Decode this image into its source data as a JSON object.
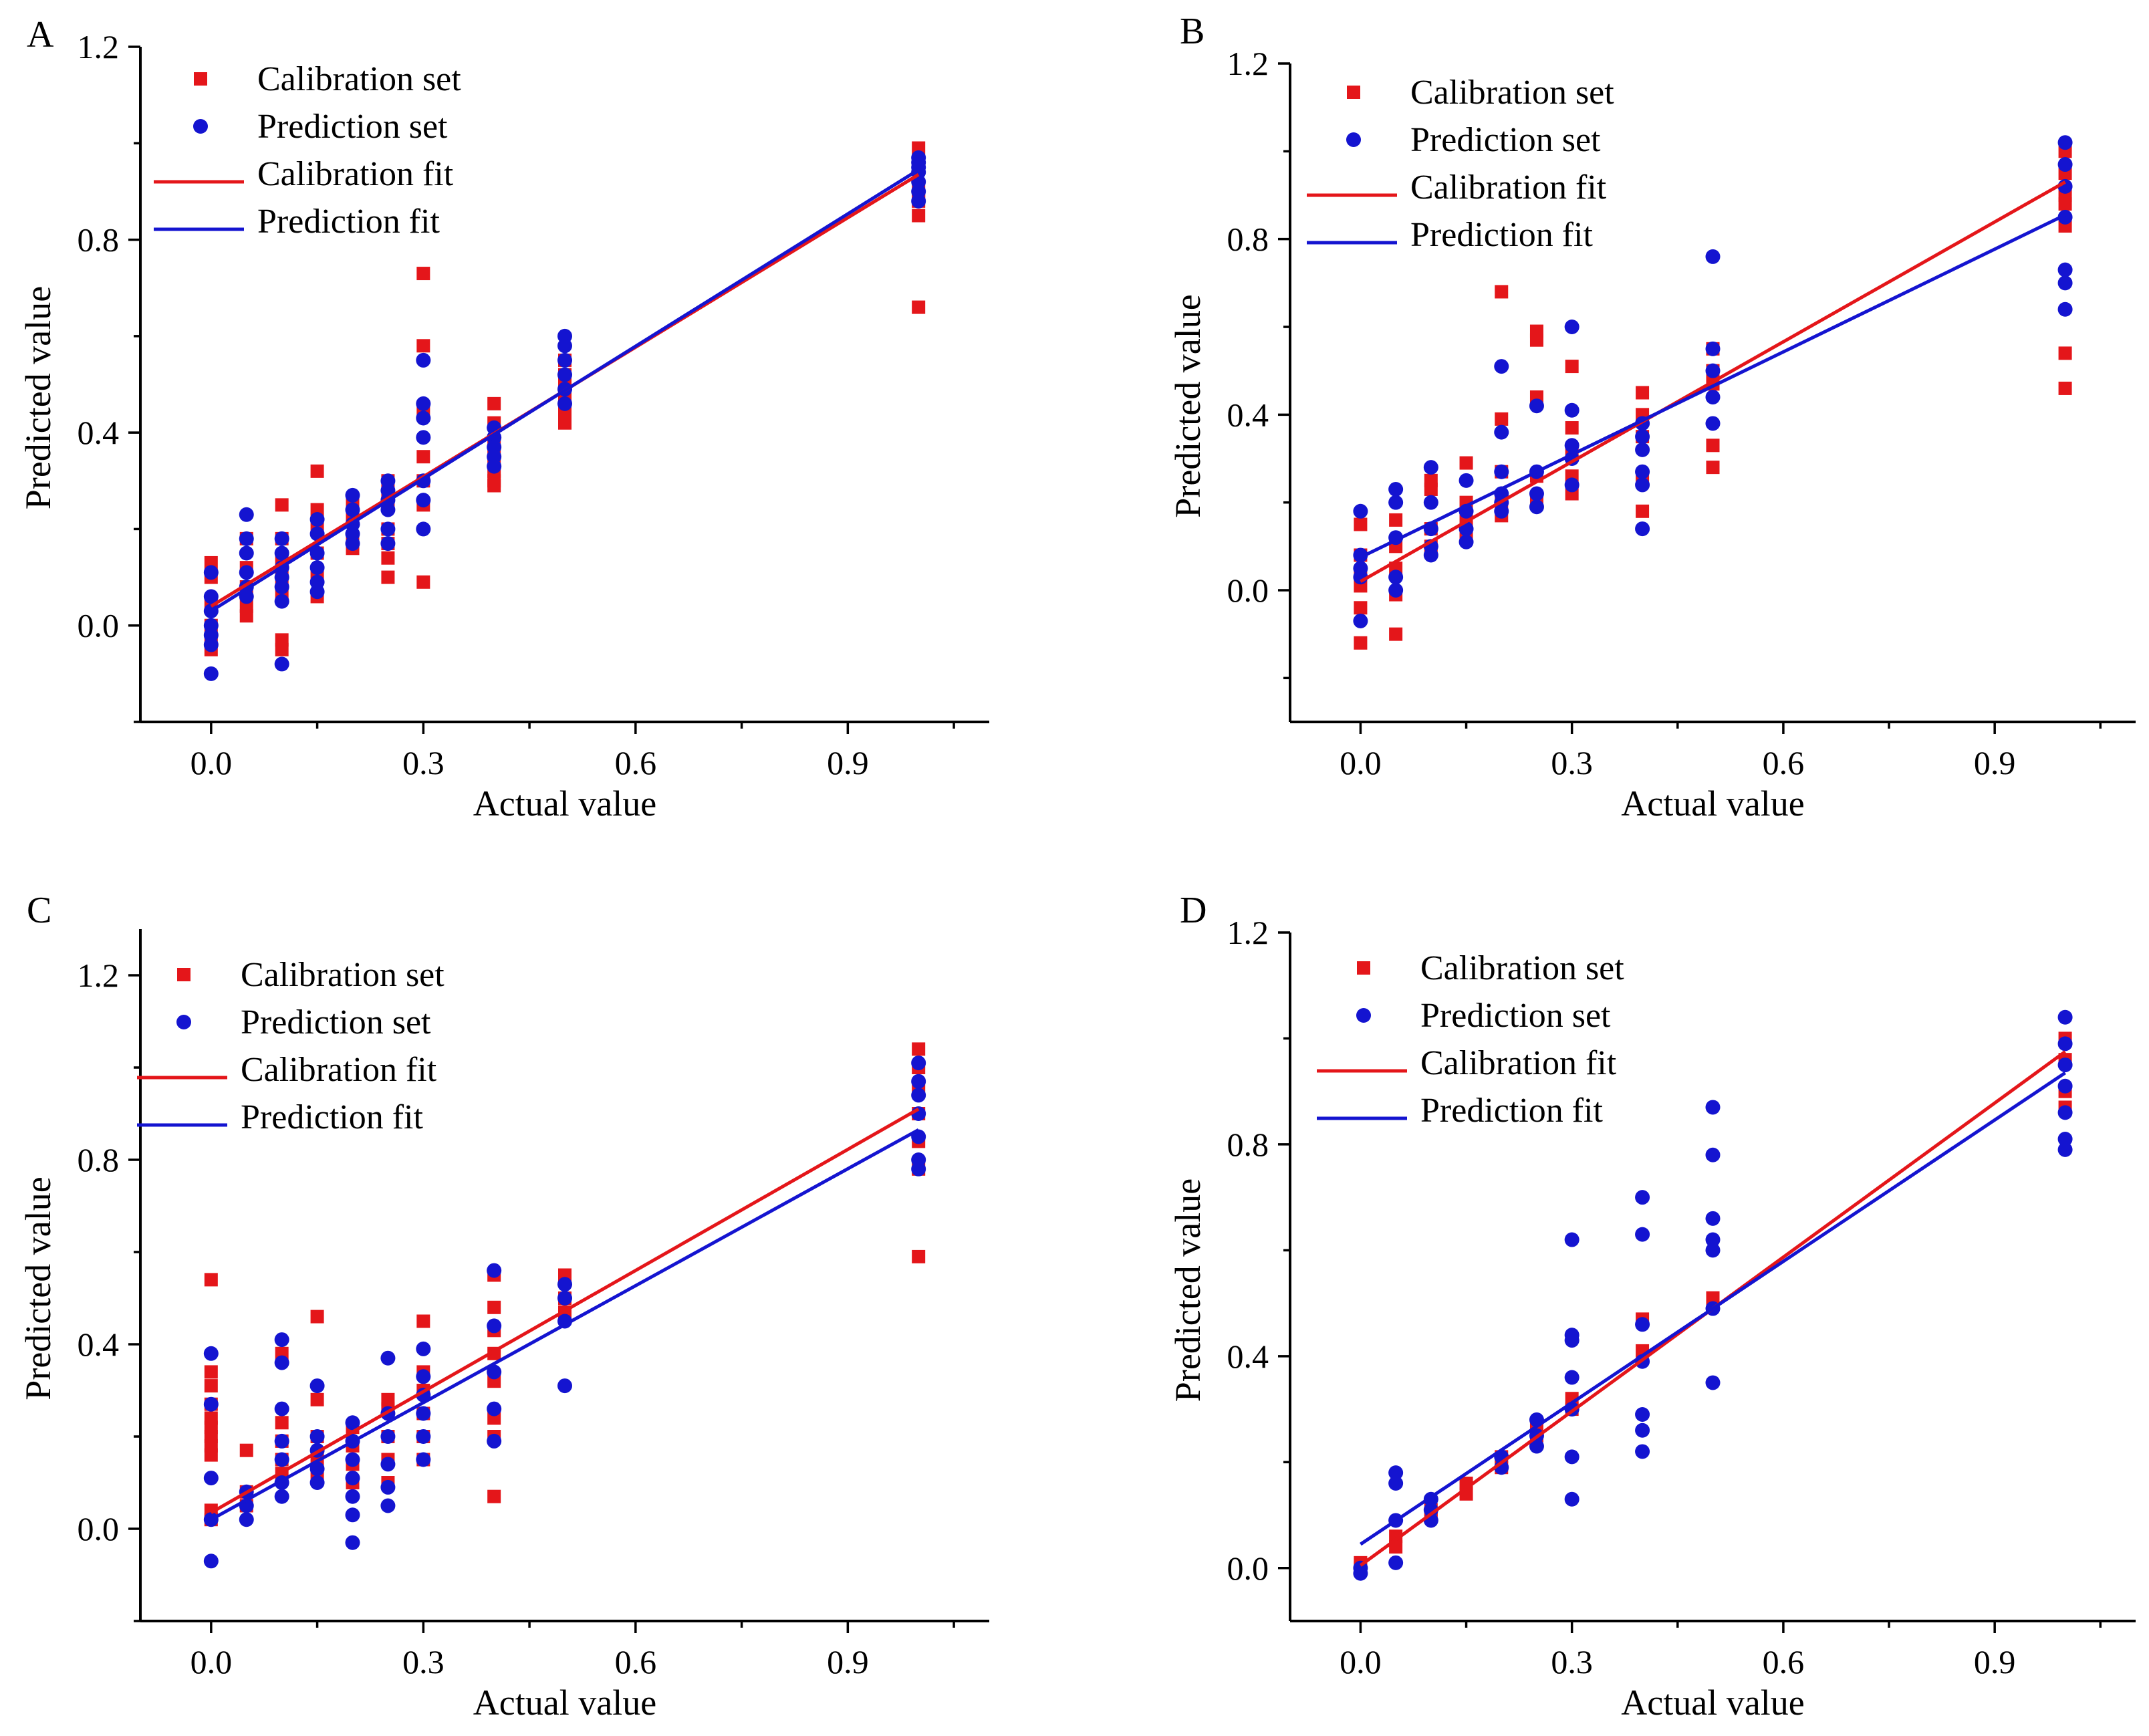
{
  "figure": {
    "colors": {
      "calibration": "#e4161a",
      "prediction": "#1414d0",
      "axis": "#000000"
    },
    "legend": [
      "Calibration set",
      "Prediction set",
      "Calibration fit",
      "Prediction fit"
    ]
  },
  "chart_data": [
    {
      "type": "scatter",
      "panel": "A",
      "xlabel": "Actual value",
      "ylabel": "Predicted value",
      "xticks": [
        "0.0",
        "0.3",
        "0.6",
        "0.9"
      ],
      "yticks": [
        "0.0",
        "0.4",
        "0.8",
        "1.2"
      ],
      "xlim": [
        -0.1,
        1.1
      ],
      "ylim": [
        -0.2,
        1.2
      ],
      "legend": [
        "Calibration set",
        "Prediction set",
        "Calibration fit",
        "Prediction fit"
      ],
      "series": [
        {
          "name": "Calibration set",
          "kind": "points",
          "marker": "square",
          "x": [
            0,
            0,
            0,
            0,
            0,
            0,
            0.05,
            0.05,
            0.05,
            0.05,
            0.05,
            0.1,
            0.1,
            0.1,
            0.1,
            0.1,
            0.1,
            0.1,
            0.15,
            0.15,
            0.15,
            0.15,
            0.15,
            0.15,
            0.2,
            0.2,
            0.2,
            0.2,
            0.25,
            0.25,
            0.25,
            0.25,
            0.25,
            0.25,
            0.3,
            0.3,
            0.3,
            0.3,
            0.3,
            0.3,
            0.3,
            0.4,
            0.4,
            0.4,
            0.4,
            0.4,
            0.4,
            0.4,
            0.5,
            0.5,
            0.5,
            0.5,
            0.5,
            0.5,
            1,
            1,
            1,
            1,
            1,
            1
          ],
          "y": [
            0.13,
            0.1,
            0.05,
            0.0,
            -0.03,
            -0.05,
            0.18,
            0.12,
            0.08,
            0.04,
            0.02,
            0.25,
            0.18,
            0.14,
            0.1,
            0.06,
            -0.03,
            -0.05,
            0.32,
            0.24,
            0.2,
            0.15,
            0.1,
            0.06,
            0.25,
            0.22,
            0.18,
            0.16,
            0.3,
            0.26,
            0.2,
            0.17,
            0.14,
            0.1,
            0.73,
            0.58,
            0.44,
            0.35,
            0.3,
            0.25,
            0.09,
            0.46,
            0.42,
            0.38,
            0.35,
            0.32,
            0.3,
            0.29,
            0.55,
            0.52,
            0.5,
            0.47,
            0.44,
            0.42,
            0.99,
            0.95,
            0.9,
            0.88,
            0.85,
            0.66
          ]
        },
        {
          "name": "Prediction set",
          "kind": "points",
          "marker": "circle",
          "x": [
            0,
            0,
            0,
            0,
            0,
            0,
            0,
            0.05,
            0.05,
            0.05,
            0.05,
            0.05,
            0.05,
            0.1,
            0.1,
            0.1,
            0.1,
            0.1,
            0.1,
            0.1,
            0.15,
            0.15,
            0.15,
            0.15,
            0.15,
            0.15,
            0.2,
            0.2,
            0.2,
            0.2,
            0.2,
            0.25,
            0.25,
            0.25,
            0.25,
            0.25,
            0.25,
            0.3,
            0.3,
            0.3,
            0.3,
            0.3,
            0.3,
            0.3,
            0.4,
            0.4,
            0.4,
            0.4,
            0.4,
            0.5,
            0.5,
            0.5,
            0.5,
            0.5,
            0.5,
            1,
            1,
            1,
            1,
            1,
            1,
            1
          ],
          "y": [
            0.11,
            0.06,
            0.03,
            0.0,
            -0.02,
            -0.04,
            -0.1,
            0.23,
            0.18,
            0.15,
            0.11,
            0.08,
            0.06,
            0.18,
            0.15,
            0.12,
            0.1,
            0.08,
            0.05,
            -0.08,
            0.22,
            0.19,
            0.15,
            0.12,
            0.09,
            0.07,
            0.27,
            0.24,
            0.21,
            0.19,
            0.17,
            0.3,
            0.28,
            0.26,
            0.24,
            0.2,
            0.17,
            0.55,
            0.46,
            0.43,
            0.39,
            0.3,
            0.26,
            0.2,
            0.41,
            0.39,
            0.37,
            0.35,
            0.33,
            0.6,
            0.58,
            0.55,
            0.52,
            0.49,
            0.46,
            0.97,
            0.96,
            0.95,
            0.94,
            0.92,
            0.9,
            0.88
          ]
        },
        {
          "name": "Calibration fit",
          "kind": "line",
          "x": [
            0,
            1
          ],
          "y": [
            0.04,
            0.935
          ]
        },
        {
          "name": "Prediction fit",
          "kind": "line",
          "x": [
            0,
            1
          ],
          "y": [
            0.03,
            0.945
          ]
        }
      ]
    },
    {
      "type": "scatter",
      "panel": "B",
      "xlabel": "Actual value",
      "ylabel": "Predicted value",
      "xticks": [
        "0.0",
        "0.3",
        "0.6",
        "0.9"
      ],
      "yticks": [
        "0.0",
        "0.4",
        "0.8",
        "1.2"
      ],
      "xlim": [
        -0.1,
        1.1
      ],
      "ylim": [
        -0.3,
        1.2
      ],
      "legend": [
        "Calibration set",
        "Prediction set",
        "Calibration fit",
        "Prediction fit"
      ],
      "series": [
        {
          "name": "Calibration set",
          "kind": "points",
          "marker": "square",
          "x": [
            0,
            0,
            0,
            0,
            0,
            0,
            0.05,
            0.05,
            0.05,
            0.05,
            0.05,
            0.1,
            0.1,
            0.1,
            0.1,
            0.15,
            0.15,
            0.15,
            0.15,
            0.2,
            0.2,
            0.2,
            0.2,
            0.2,
            0.25,
            0.25,
            0.25,
            0.25,
            0.25,
            0.3,
            0.3,
            0.3,
            0.3,
            0.3,
            0.4,
            0.4,
            0.4,
            0.4,
            0.4,
            0.5,
            0.5,
            0.5,
            0.5,
            0.5,
            1,
            1,
            1,
            1,
            1,
            1,
            1
          ],
          "y": [
            0.15,
            0.08,
            0.04,
            0.01,
            -0.04,
            -0.12,
            0.16,
            0.1,
            0.05,
            -0.01,
            -0.1,
            0.25,
            0.23,
            0.14,
            0.1,
            0.29,
            0.2,
            0.16,
            0.12,
            0.68,
            0.39,
            0.27,
            0.2,
            0.17,
            0.59,
            0.57,
            0.44,
            0.26,
            0.2,
            0.51,
            0.37,
            0.32,
            0.26,
            0.22,
            0.45,
            0.4,
            0.35,
            0.25,
            0.18,
            0.55,
            0.5,
            0.47,
            0.33,
            0.28,
            1.0,
            0.95,
            0.9,
            0.88,
            0.83,
            0.54,
            0.46
          ]
        },
        {
          "name": "Prediction set",
          "kind": "points",
          "marker": "circle",
          "x": [
            0,
            0,
            0,
            0,
            0,
            0.05,
            0.05,
            0.05,
            0.05,
            0.05,
            0.1,
            0.1,
            0.1,
            0.1,
            0.1,
            0.15,
            0.15,
            0.15,
            0.15,
            0.2,
            0.2,
            0.2,
            0.2,
            0.2,
            0.2,
            0.25,
            0.25,
            0.25,
            0.25,
            0.3,
            0.3,
            0.3,
            0.3,
            0.3,
            0.4,
            0.4,
            0.4,
            0.4,
            0.4,
            0.4,
            0.5,
            0.5,
            0.5,
            0.5,
            0.5,
            1,
            1,
            1,
            1,
            1,
            1,
            1
          ],
          "y": [
            0.18,
            0.08,
            0.05,
            0.03,
            -0.07,
            0.23,
            0.2,
            0.12,
            0.03,
            0.0,
            0.28,
            0.2,
            0.14,
            0.1,
            0.08,
            0.25,
            0.18,
            0.14,
            0.11,
            0.51,
            0.36,
            0.27,
            0.22,
            0.2,
            0.18,
            0.42,
            0.27,
            0.22,
            0.19,
            0.6,
            0.41,
            0.33,
            0.3,
            0.24,
            0.38,
            0.35,
            0.32,
            0.27,
            0.24,
            0.14,
            0.76,
            0.55,
            0.5,
            0.44,
            0.38,
            1.02,
            0.97,
            0.92,
            0.85,
            0.73,
            0.7,
            0.64
          ]
        },
        {
          "name": "Calibration fit",
          "kind": "line",
          "x": [
            0,
            1
          ],
          "y": [
            0.02,
            0.93
          ]
        },
        {
          "name": "Prediction fit",
          "kind": "line",
          "x": [
            0,
            1
          ],
          "y": [
            0.075,
            0.855
          ]
        }
      ]
    },
    {
      "type": "scatter",
      "panel": "C",
      "xlabel": "Actual value",
      "ylabel": "Predicted value",
      "xticks": [
        "0.0",
        "0.3",
        "0.6",
        "0.9"
      ],
      "yticks": [
        "0.0",
        "0.4",
        "0.8",
        "1.2"
      ],
      "xlim": [
        -0.1,
        1.1
      ],
      "ylim": [
        -0.2,
        1.3
      ],
      "legend": [
        "Calibration set",
        "Prediction set",
        "Calibration fit",
        "Prediction fit"
      ],
      "series": [
        {
          "name": "Calibration set",
          "kind": "points",
          "marker": "square",
          "x": [
            0,
            0,
            0,
            0,
            0,
            0,
            0,
            0,
            0,
            0,
            0,
            0.05,
            0.05,
            0.05,
            0.1,
            0.1,
            0.1,
            0.1,
            0.1,
            0.15,
            0.15,
            0.15,
            0.15,
            0.15,
            0.2,
            0.2,
            0.2,
            0.2,
            0.25,
            0.25,
            0.25,
            0.25,
            0.25,
            0.3,
            0.3,
            0.3,
            0.3,
            0.3,
            0.3,
            0.4,
            0.4,
            0.4,
            0.4,
            0.4,
            0.4,
            0.4,
            0.4,
            0.5,
            0.5,
            0.5,
            1,
            1,
            1,
            1,
            1,
            1,
            1
          ],
          "y": [
            0.54,
            0.34,
            0.31,
            0.27,
            0.24,
            0.22,
            0.2,
            0.18,
            0.16,
            0.04,
            0.02,
            0.17,
            0.08,
            0.05,
            0.38,
            0.23,
            0.19,
            0.15,
            0.12,
            0.46,
            0.28,
            0.2,
            0.15,
            0.12,
            0.22,
            0.18,
            0.14,
            0.1,
            0.28,
            0.26,
            0.2,
            0.15,
            0.1,
            0.45,
            0.34,
            0.3,
            0.25,
            0.2,
            0.15,
            0.55,
            0.48,
            0.43,
            0.38,
            0.32,
            0.24,
            0.2,
            0.07,
            0.55,
            0.5,
            0.47,
            1.04,
            1.0,
            0.95,
            0.9,
            0.84,
            0.78,
            0.59
          ]
        },
        {
          "name": "Prediction set",
          "kind": "points",
          "marker": "circle",
          "x": [
            0,
            0,
            0,
            0,
            0,
            0.05,
            0.05,
            0.05,
            0.1,
            0.1,
            0.1,
            0.1,
            0.1,
            0.1,
            0.1,
            0.15,
            0.15,
            0.15,
            0.15,
            0.15,
            0.2,
            0.2,
            0.2,
            0.2,
            0.2,
            0.2,
            0.2,
            0.25,
            0.25,
            0.25,
            0.25,
            0.25,
            0.25,
            0.3,
            0.3,
            0.3,
            0.3,
            0.3,
            0.3,
            0.4,
            0.4,
            0.4,
            0.4,
            0.4,
            0.5,
            0.5,
            0.5,
            0.5,
            1,
            1,
            1,
            1,
            1,
            1,
            1
          ],
          "y": [
            0.38,
            0.27,
            0.11,
            0.02,
            -0.07,
            0.08,
            0.05,
            0.02,
            0.41,
            0.36,
            0.26,
            0.19,
            0.15,
            0.1,
            0.07,
            0.31,
            0.2,
            0.17,
            0.13,
            0.1,
            0.23,
            0.19,
            0.15,
            0.11,
            0.07,
            0.03,
            -0.03,
            0.37,
            0.25,
            0.2,
            0.14,
            0.09,
            0.05,
            0.39,
            0.33,
            0.29,
            0.25,
            0.2,
            0.15,
            0.56,
            0.44,
            0.34,
            0.26,
            0.19,
            0.53,
            0.5,
            0.45,
            0.31,
            1.01,
            0.97,
            0.94,
            0.9,
            0.85,
            0.8,
            0.78
          ]
        },
        {
          "name": "Calibration fit",
          "kind": "line",
          "x": [
            0,
            1
          ],
          "y": [
            0.035,
            0.91
          ]
        },
        {
          "name": "Prediction fit",
          "kind": "line",
          "x": [
            0,
            1
          ],
          "y": [
            0.02,
            0.865
          ]
        }
      ]
    },
    {
      "type": "scatter",
      "panel": "D",
      "xlabel": "Actual value",
      "ylabel": "Predicted value",
      "xticks": [
        "0.0",
        "0.3",
        "0.6",
        "0.9"
      ],
      "yticks": [
        "0.0",
        "0.4",
        "0.8",
        "1.2"
      ],
      "xlim": [
        -0.1,
        1.1
      ],
      "ylim": [
        -0.1,
        1.2
      ],
      "legend": [
        "Calibration set",
        "Prediction set",
        "Calibration fit",
        "Prediction fit"
      ],
      "series": [
        {
          "name": "Calibration set",
          "kind": "points",
          "marker": "square",
          "x": [
            0,
            0,
            0.05,
            0.05,
            0.1,
            0.1,
            0.15,
            0.15,
            0.2,
            0.2,
            0.25,
            0.25,
            0.3,
            0.3,
            0.4,
            0.4,
            0.5,
            0.5,
            1,
            1,
            1,
            1
          ],
          "y": [
            0.01,
            0.0,
            0.06,
            0.04,
            0.11,
            0.1,
            0.16,
            0.14,
            0.21,
            0.19,
            0.27,
            0.25,
            0.32,
            0.3,
            0.47,
            0.41,
            0.51,
            0.5,
            1.0,
            0.96,
            0.9,
            0.87
          ]
        },
        {
          "name": "Prediction set",
          "kind": "points",
          "marker": "circle",
          "x": [
            0,
            0,
            0.05,
            0.05,
            0.05,
            0.05,
            0.1,
            0.1,
            0.1,
            0.2,
            0.2,
            0.25,
            0.25,
            0.25,
            0.3,
            0.3,
            0.3,
            0.3,
            0.3,
            0.3,
            0.3,
            0.4,
            0.4,
            0.4,
            0.4,
            0.4,
            0.4,
            0.4,
            0.5,
            0.5,
            0.5,
            0.5,
            0.5,
            0.5,
            0.5,
            1,
            1,
            1,
            1,
            1,
            1,
            1
          ],
          "y": [
            0.0,
            -0.01,
            0.18,
            0.16,
            0.09,
            0.01,
            0.13,
            0.11,
            0.09,
            0.21,
            0.19,
            0.28,
            0.25,
            0.23,
            0.62,
            0.44,
            0.43,
            0.36,
            0.3,
            0.21,
            0.13,
            0.7,
            0.63,
            0.46,
            0.39,
            0.29,
            0.26,
            0.22,
            0.87,
            0.78,
            0.66,
            0.62,
            0.6,
            0.49,
            0.35,
            1.04,
            0.99,
            0.95,
            0.91,
            0.86,
            0.81,
            0.79
          ]
        },
        {
          "name": "Calibration fit",
          "kind": "line",
          "x": [
            0,
            1
          ],
          "y": [
            0.005,
            0.975
          ]
        },
        {
          "name": "Prediction fit",
          "kind": "line",
          "x": [
            0,
            1
          ],
          "y": [
            0.045,
            0.935
          ]
        }
      ]
    }
  ]
}
